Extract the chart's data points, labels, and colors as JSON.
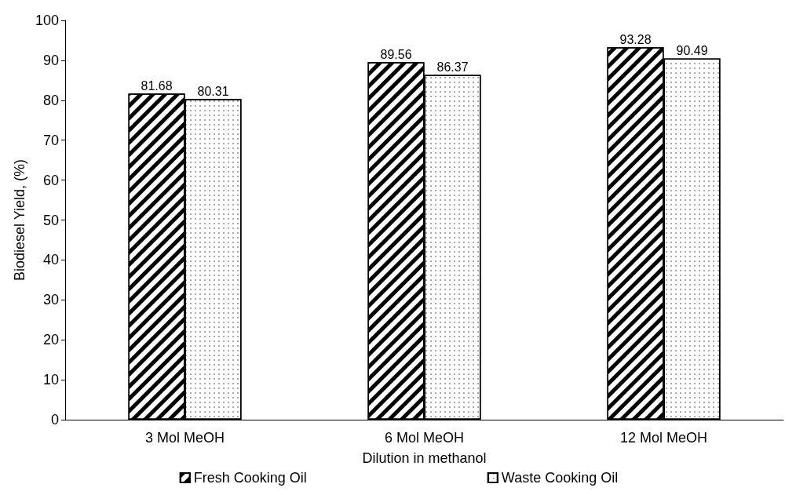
{
  "chart_data": {
    "type": "bar",
    "xlabel": "Dilution in methanol",
    "ylabel": "Biodiesel Yield, (%)",
    "categories": [
      "3 Mol MeOH",
      "6 Mol MeOH",
      "12 Mol MeOH"
    ],
    "series": [
      {
        "name": "Fresh Cooking Oil",
        "color": "#000000",
        "values": [
          81.68,
          89.56,
          93.28
        ]
      },
      {
        "name": "Waste Cooking Oil",
        "color": "#000000",
        "values": [
          80.31,
          86.37,
          90.49
        ]
      }
    ],
    "ylim": [
      0,
      100
    ],
    "yticks": [
      0,
      10,
      20,
      30,
      40,
      50,
      60,
      70,
      80,
      90,
      100
    ],
    "grid": false,
    "legend": "bottom",
    "data_labels": true
  }
}
